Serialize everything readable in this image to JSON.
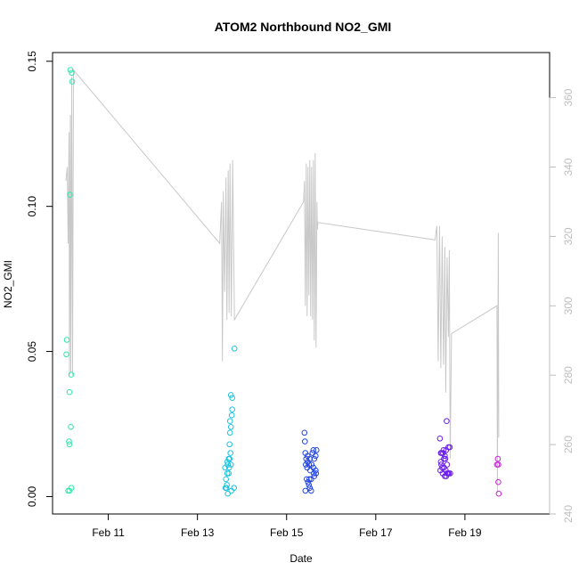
{
  "chart_data": {
    "type": "scatter",
    "title": "ATOM2 Northbound NO2_GMI",
    "xlabel": "Date",
    "ylabel": "NO2_GMI",
    "x_range_days": [
      9.75,
      20.9
    ],
    "x_ticks": [
      {
        "value": 11,
        "label": "Feb 11"
      },
      {
        "value": 13,
        "label": "Feb 13"
      },
      {
        "value": 15,
        "label": "Feb 15"
      },
      {
        "value": 17,
        "label": "Feb 17"
      },
      {
        "value": 19,
        "label": "Feb 19"
      }
    ],
    "ylim": [
      -0.006,
      0.153
    ],
    "y_ticks": [
      {
        "value": 0.0,
        "label": "0.00"
      },
      {
        "value": 0.05,
        "label": "0.05"
      },
      {
        "value": 0.1,
        "label": "0.10"
      },
      {
        "value": 0.15,
        "label": "0.15"
      }
    ],
    "y2lim": [
      240,
      373
    ],
    "y2_ticks": [
      {
        "value": 240,
        "label": "240"
      },
      {
        "value": 260,
        "label": "260"
      },
      {
        "value": 280,
        "label": "280"
      },
      {
        "value": 300,
        "label": "300"
      },
      {
        "value": 320,
        "label": "320"
      },
      {
        "value": 340,
        "label": "340"
      },
      {
        "value": 360,
        "label": "360"
      }
    ],
    "colors": {
      "line": "#c8c8c8",
      "right_axis": "#bebebe",
      "flight_1": "#2ee8a8",
      "flight_2": "#1cc4e0",
      "flight_3": "#2244e0",
      "flight_4": "#6a1ee8",
      "flight_5": "#cc22dd"
    },
    "series": [
      {
        "flight": 1,
        "color_key": "flight_1",
        "points": [
          [
            10.15,
            0.147
          ],
          [
            10.18,
            0.146
          ],
          [
            10.19,
            0.143
          ],
          [
            10.14,
            0.104
          ],
          [
            10.07,
            0.054
          ],
          [
            10.06,
            0.049
          ],
          [
            10.17,
            0.042
          ],
          [
            10.13,
            0.036
          ],
          [
            10.16,
            0.024
          ],
          [
            10.12,
            0.019
          ],
          [
            10.13,
            0.018
          ],
          [
            10.1,
            0.002
          ],
          [
            10.13,
            0.002
          ],
          [
            10.17,
            0.003
          ]
        ]
      },
      {
        "flight": 2,
        "color_key": "flight_2",
        "points": [
          [
            13.83,
            0.051
          ],
          [
            13.75,
            0.035
          ],
          [
            13.78,
            0.034
          ],
          [
            13.78,
            0.03
          ],
          [
            13.77,
            0.028
          ],
          [
            13.73,
            0.026
          ],
          [
            13.75,
            0.024
          ],
          [
            13.73,
            0.022
          ],
          [
            13.72,
            0.018
          ],
          [
            13.74,
            0.015
          ],
          [
            13.7,
            0.013
          ],
          [
            13.72,
            0.013
          ],
          [
            13.67,
            0.012
          ],
          [
            13.75,
            0.011
          ],
          [
            13.68,
            0.011
          ],
          [
            13.71,
            0.01
          ],
          [
            13.62,
            0.01
          ],
          [
            13.67,
            0.008
          ],
          [
            13.7,
            0.008
          ],
          [
            13.64,
            0.006
          ],
          [
            13.66,
            0.004
          ],
          [
            13.63,
            0.003
          ],
          [
            13.65,
            0.003
          ],
          [
            13.82,
            0.003
          ],
          [
            13.76,
            0.002
          ],
          [
            13.68,
            0.001
          ]
        ]
      },
      {
        "flight": 3,
        "color_key": "flight_3",
        "points": [
          [
            15.4,
            0.022
          ],
          [
            15.41,
            0.019
          ],
          [
            15.6,
            0.016
          ],
          [
            15.67,
            0.016
          ],
          [
            15.42,
            0.015
          ],
          [
            15.58,
            0.015
          ],
          [
            15.47,
            0.014
          ],
          [
            15.65,
            0.014
          ],
          [
            15.44,
            0.013
          ],
          [
            15.52,
            0.013
          ],
          [
            15.62,
            0.013
          ],
          [
            15.47,
            0.012
          ],
          [
            15.43,
            0.011
          ],
          [
            15.5,
            0.011
          ],
          [
            15.56,
            0.011
          ],
          [
            15.46,
            0.01
          ],
          [
            15.6,
            0.01
          ],
          [
            15.65,
            0.009
          ],
          [
            15.53,
            0.009
          ],
          [
            15.61,
            0.008
          ],
          [
            15.66,
            0.008
          ],
          [
            15.62,
            0.007
          ],
          [
            15.45,
            0.006
          ],
          [
            15.51,
            0.006
          ],
          [
            15.55,
            0.006
          ],
          [
            15.48,
            0.005
          ],
          [
            15.5,
            0.004
          ],
          [
            15.52,
            0.003
          ],
          [
            15.42,
            0.002
          ],
          [
            15.55,
            0.002
          ]
        ]
      },
      {
        "flight": 4,
        "color_key": "flight_4",
        "points": [
          [
            18.59,
            0.026
          ],
          [
            18.44,
            0.02
          ],
          [
            18.63,
            0.017
          ],
          [
            18.66,
            0.017
          ],
          [
            18.52,
            0.016
          ],
          [
            18.58,
            0.016
          ],
          [
            18.48,
            0.015
          ],
          [
            18.51,
            0.015
          ],
          [
            18.46,
            0.015
          ],
          [
            18.55,
            0.014
          ],
          [
            18.53,
            0.013
          ],
          [
            18.46,
            0.012
          ],
          [
            18.56,
            0.013
          ],
          [
            18.47,
            0.011
          ],
          [
            18.6,
            0.011
          ],
          [
            18.49,
            0.01
          ],
          [
            18.53,
            0.01
          ],
          [
            18.45,
            0.009
          ],
          [
            18.57,
            0.009
          ],
          [
            18.5,
            0.008
          ],
          [
            18.6,
            0.008
          ],
          [
            18.64,
            0.008
          ],
          [
            18.67,
            0.008
          ],
          [
            18.55,
            0.007
          ],
          [
            18.62,
            0.008
          ],
          [
            18.58,
            0.007
          ]
        ]
      },
      {
        "flight": 5,
        "color_key": "flight_5",
        "points": [
          [
            19.74,
            0.013
          ],
          [
            19.72,
            0.011
          ],
          [
            19.75,
            0.011
          ],
          [
            19.75,
            0.005
          ],
          [
            19.76,
            0.001
          ]
        ]
      }
    ],
    "secondary_line": [
      [
        10.05,
        336
      ],
      [
        10.08,
        340
      ],
      [
        10.1,
        318
      ],
      [
        10.12,
        350
      ],
      [
        10.13,
        280
      ],
      [
        10.15,
        355
      ],
      [
        10.16,
        281
      ],
      [
        10.18,
        366
      ],
      [
        10.2,
        280
      ],
      [
        10.22,
        368
      ],
      [
        13.5,
        318
      ],
      [
        13.54,
        330
      ],
      [
        13.56,
        284
      ],
      [
        13.58,
        333
      ],
      [
        13.61,
        304
      ],
      [
        13.64,
        337
      ],
      [
        13.66,
        296
      ],
      [
        13.69,
        339
      ],
      [
        13.71,
        298
      ],
      [
        13.73,
        341
      ],
      [
        13.76,
        297
      ],
      [
        13.79,
        342
      ],
      [
        13.83,
        296
      ],
      [
        15.38,
        330
      ],
      [
        15.4,
        336
      ],
      [
        15.42,
        300
      ],
      [
        15.44,
        341
      ],
      [
        15.46,
        297
      ],
      [
        15.48,
        340
      ],
      [
        15.5,
        303
      ],
      [
        15.52,
        342
      ],
      [
        15.54,
        297
      ],
      [
        15.56,
        340
      ],
      [
        15.58,
        296
      ],
      [
        15.6,
        342
      ],
      [
        15.62,
        290
      ],
      [
        15.64,
        344
      ],
      [
        15.66,
        288
      ],
      [
        15.68,
        330
      ],
      [
        15.69,
        322
      ],
      [
        15.7,
        324
      ],
      [
        18.33,
        319
      ],
      [
        18.37,
        323
      ],
      [
        18.4,
        284
      ],
      [
        18.43,
        323
      ],
      [
        18.46,
        282
      ],
      [
        18.49,
        320
      ],
      [
        18.52,
        283
      ],
      [
        18.55,
        317
      ],
      [
        18.57,
        275
      ],
      [
        18.6,
        314
      ],
      [
        18.63,
        291
      ],
      [
        18.65,
        316
      ],
      [
        18.67,
        256
      ],
      [
        18.7,
        292
      ],
      [
        19.72,
        300
      ],
      [
        19.73,
        246
      ],
      [
        19.75,
        321
      ],
      [
        19.76,
        262
      ]
    ]
  }
}
